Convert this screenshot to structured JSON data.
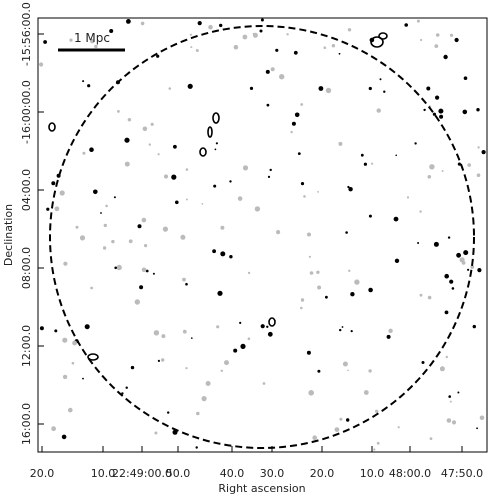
{
  "figure": {
    "x_label": "Right ascension",
    "y_label": "Declination",
    "scale_bar": "1 Mpc",
    "x_ticks": [
      "20.0",
      "10.0",
      "22:49:00.0",
      "50.0",
      "40.0",
      "30.0",
      "20.0",
      "10.0",
      "48:00.0",
      "47:50.0"
    ],
    "y_ticks": [
      "-15:56:00.0",
      "-16:00:00.0",
      "04:00.0",
      "08:00.0",
      "12:00.0",
      "16:00.0"
    ]
  }
}
